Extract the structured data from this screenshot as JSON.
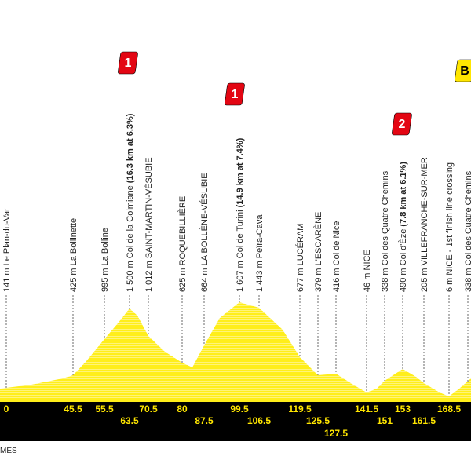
{
  "waypoints": [
    {
      "label": "141 m Le Plan-du-Var",
      "km": "0"
    },
    {
      "label": "425 m La Bollinette",
      "km": "45.5"
    },
    {
      "label": "995 m La Bolline",
      "km": "55.5"
    },
    {
      "label": "1 500 m Col de la Colmiane ",
      "detail": "(16.3 km at 6.3%)",
      "km": "63.5"
    },
    {
      "label": "1 012 m SAINT-MARTIN-VÉSUBIE",
      "km": "70.5"
    },
    {
      "label": "625 m ROQUEBILLIÈRE",
      "km": "80"
    },
    {
      "label": "664 m LA BOLLÈNE-VÉSUBIE",
      "km": "87.5"
    },
    {
      "label": "1 607 m Col de Turini ",
      "detail": "(14.9 km at 7.4%)",
      "km": "99.5"
    },
    {
      "label": "1 443 m Peïra-Cava",
      "km": "106.5"
    },
    {
      "label": "677 m LUCÉRAM",
      "km": "119.5"
    },
    {
      "label": "379 m L'ESCARÈNE",
      "km": "125.5"
    },
    {
      "label": "416 m Col de Nice",
      "km": "127.5"
    },
    {
      "label": "46 m NICE",
      "km": "141.5"
    },
    {
      "label": "338 m Col des Quatre Chemins",
      "km": "151"
    },
    {
      "label": "490 m Col d'Èze ",
      "detail": "(7.8 km at 6.1%)",
      "km": "153"
    },
    {
      "label": "205 m VILLEFRANCHE-SUR-MER",
      "km": "161.5"
    },
    {
      "label": "6 m NICE - 1st finish line crossing",
      "km": "168.5"
    },
    {
      "label": "338 m Col des Quatre Chemins"
    }
  ],
  "badges": [
    "1",
    "1",
    "2",
    "B"
  ],
  "footer": "MES"
}
